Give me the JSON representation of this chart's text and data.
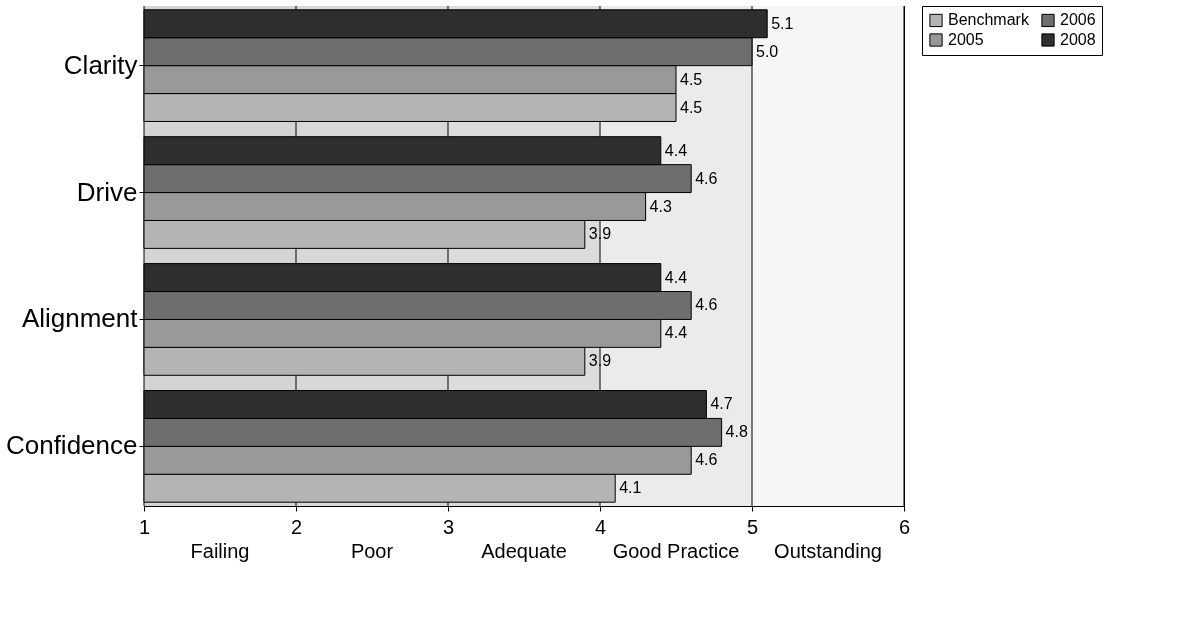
{
  "chart_data": {
    "type": "bar",
    "orientation": "horizontal",
    "categories": [
      "Clarity",
      "Drive",
      "Alignment",
      "Confidence"
    ],
    "series": [
      {
        "name": "Benchmark",
        "color": "#b4b4b4",
        "values": [
          4.5,
          3.9,
          3.9,
          4.1
        ],
        "value_labels": [
          "4.5",
          "3.9",
          "3.9",
          "4.1"
        ]
      },
      {
        "name": "2005",
        "color": "#999999",
        "values": [
          4.5,
          4.3,
          4.4,
          4.6
        ],
        "value_labels": [
          "4.5",
          "4.3",
          "4.4",
          "4.6"
        ]
      },
      {
        "name": "2006",
        "color": "#6e6e6e",
        "values": [
          5.0,
          4.6,
          4.6,
          4.8
        ],
        "value_labels": [
          "5.0",
          "4.6",
          "4.6",
          "4.8"
        ]
      },
      {
        "name": "2008",
        "color": "#2e2e2e",
        "values": [
          5.1,
          4.4,
          4.4,
          4.7
        ],
        "value_labels": [
          "5.1",
          "4.4",
          "4.4",
          "4.7"
        ]
      }
    ],
    "xlim": [
      1,
      6
    ],
    "xticks": [
      1,
      2,
      3,
      4,
      5,
      6
    ],
    "bands": [
      {
        "axis": "x",
        "from": 1,
        "to": 2,
        "label": "Failing",
        "color": "#d4d4d4"
      },
      {
        "axis": "x",
        "from": 2,
        "to": 3,
        "label": "Poor",
        "color": "#d8d8d8"
      },
      {
        "axis": "x",
        "from": 3,
        "to": 4,
        "label": "Adequate",
        "color": "#dcdcdc"
      },
      {
        "axis": "x",
        "from": 4,
        "to": 5,
        "label": "Good Practice",
        "color": "#ebebeb"
      },
      {
        "axis": "x",
        "from": 5,
        "to": 6,
        "label": "Outstanding",
        "color": "#f6f6f6"
      }
    ],
    "grid": "x",
    "legend": "right"
  }
}
